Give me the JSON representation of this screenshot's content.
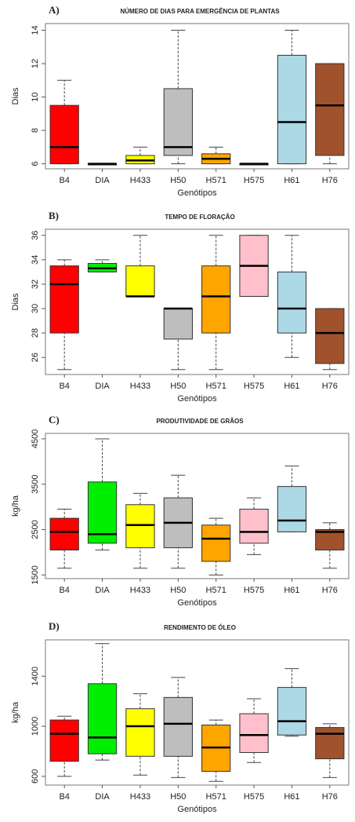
{
  "chart_data": [
    {
      "type": "box",
      "label": "A)",
      "title": "NÚMERO DE DIAS PARA EMERGÊNCIA DE PLANTAS",
      "x_label": "Genótipos",
      "y_label": "Dias",
      "categories": [
        "B4",
        "DIA",
        "H433",
        "H50",
        "H571",
        "H575",
        "H61",
        "H76"
      ],
      "colors": [
        "#ff0000",
        "#00ee00",
        "#ffff00",
        "#bebebe",
        "#ffa500",
        "#ffc0cb",
        "#add8e6",
        "#a0522d"
      ],
      "values": [
        {
          "min": 6,
          "q1": 6,
          "median": 7,
          "q3": 9.5,
          "max": 11
        },
        {
          "min": 6,
          "q1": 6,
          "median": 6,
          "q3": 6,
          "max": 6
        },
        {
          "min": 6,
          "q1": 6,
          "median": 6.2,
          "q3": 6.5,
          "max": 7
        },
        {
          "min": 6,
          "q1": 6.5,
          "median": 7,
          "q3": 10.5,
          "max": 14
        },
        {
          "min": 6,
          "q1": 6,
          "median": 6.3,
          "q3": 6.6,
          "max": 7
        },
        {
          "min": 6,
          "q1": 6,
          "median": 6,
          "q3": 6,
          "max": 6
        },
        {
          "min": 6,
          "q1": 6,
          "median": 8.5,
          "q3": 12.5,
          "max": 14
        },
        {
          "min": 6,
          "q1": 6.5,
          "median": 9.5,
          "q3": 12,
          "max": 12
        }
      ],
      "ylim": [
        5.7,
        14.4
      ],
      "yticks": [
        6,
        8,
        10,
        12,
        14
      ]
    },
    {
      "type": "box",
      "label": "B)",
      "title": "TEMPO DE FLORAÇÃO",
      "x_label": "Genótipos",
      "y_label": "Dias",
      "categories": [
        "B4",
        "DIA",
        "H433",
        "H50",
        "H571",
        "H575",
        "H61",
        "H76"
      ],
      "colors": [
        "#ff0000",
        "#00ee00",
        "#ffff00",
        "#bebebe",
        "#ffa500",
        "#ffc0cb",
        "#add8e6",
        "#a0522d"
      ],
      "values": [
        {
          "min": 25,
          "q1": 28,
          "median": 32,
          "q3": 33.5,
          "max": 34
        },
        {
          "min": 33,
          "q1": 33,
          "median": 33.3,
          "q3": 33.7,
          "max": 34
        },
        {
          "min": 31,
          "q1": 31,
          "median": 31,
          "q3": 33.5,
          "max": 36
        },
        {
          "min": 25,
          "q1": 27.5,
          "median": 30,
          "q3": 30,
          "max": 30
        },
        {
          "min": 25,
          "q1": 28,
          "median": 31,
          "q3": 33.5,
          "max": 36
        },
        {
          "min": 31,
          "q1": 31,
          "median": 33.5,
          "q3": 36,
          "max": 36
        },
        {
          "min": 26,
          "q1": 28,
          "median": 30,
          "q3": 33,
          "max": 36
        },
        {
          "min": 25,
          "q1": 25.5,
          "median": 28,
          "q3": 30,
          "max": 30
        }
      ],
      "ylim": [
        24.6,
        36.5
      ],
      "yticks": [
        26,
        28,
        30,
        32,
        34,
        36
      ]
    },
    {
      "type": "box",
      "label": "C)",
      "title": "PRODUTIVIDADE DE GRÃOS",
      "x_label": "Genótipos",
      "y_label": "kg/ha",
      "categories": [
        "B4",
        "DIA",
        "H433",
        "H50",
        "H571",
        "H575",
        "H61",
        "H76"
      ],
      "colors": [
        "#ff0000",
        "#00ee00",
        "#ffff00",
        "#bebebe",
        "#ffa500",
        "#ffc0cb",
        "#add8e6",
        "#a0522d"
      ],
      "values": [
        {
          "min": 1650,
          "q1": 2050,
          "median": 2450,
          "q3": 2750,
          "max": 2950
        },
        {
          "min": 2050,
          "q1": 2200,
          "median": 2400,
          "q3": 3550,
          "max": 4500
        },
        {
          "min": 1650,
          "q1": 2100,
          "median": 2600,
          "q3": 3050,
          "max": 3300
        },
        {
          "min": 1650,
          "q1": 2100,
          "median": 2650,
          "q3": 3200,
          "max": 3700
        },
        {
          "min": 1500,
          "q1": 1800,
          "median": 2300,
          "q3": 2600,
          "max": 2750
        },
        {
          "min": 1950,
          "q1": 2200,
          "median": 2450,
          "q3": 2950,
          "max": 3200
        },
        {
          "min": 2450,
          "q1": 2450,
          "median": 2700,
          "q3": 3450,
          "max": 3900
        },
        {
          "min": 1650,
          "q1": 2050,
          "median": 2450,
          "q3": 2500,
          "max": 2650
        }
      ],
      "ylim": [
        1420,
        4620
      ],
      "yticks": [
        1500,
        2500,
        3500,
        4500
      ]
    },
    {
      "type": "box",
      "label": "D)",
      "title": "RENDIMENTO DE ÓLEO",
      "x_label": "Genótipos",
      "y_label": "kg/ha",
      "categories": [
        "B4",
        "DIA",
        "H433",
        "H50",
        "H571",
        "H575",
        "H61",
        "H76"
      ],
      "colors": [
        "#ff0000",
        "#00ee00",
        "#ffff00",
        "#bebebe",
        "#ffa500",
        "#ffc0cb",
        "#add8e6",
        "#a0522d"
      ],
      "values": [
        {
          "min": 600,
          "q1": 720,
          "median": 940,
          "q3": 1050,
          "max": 1080
        },
        {
          "min": 730,
          "q1": 780,
          "median": 910,
          "q3": 1340,
          "max": 1660
        },
        {
          "min": 610,
          "q1": 760,
          "median": 1000,
          "q3": 1140,
          "max": 1260
        },
        {
          "min": 590,
          "q1": 760,
          "median": 1020,
          "q3": 1230,
          "max": 1390
        },
        {
          "min": 560,
          "q1": 640,
          "median": 830,
          "q3": 1010,
          "max": 1050
        },
        {
          "min": 710,
          "q1": 790,
          "median": 930,
          "q3": 1100,
          "max": 1220
        },
        {
          "min": 920,
          "q1": 930,
          "median": 1040,
          "q3": 1310,
          "max": 1460
        },
        {
          "min": 590,
          "q1": 740,
          "median": 940,
          "q3": 990,
          "max": 1020
        }
      ],
      "ylim": [
        530,
        1690
      ],
      "yticks": [
        600,
        1000,
        1400
      ]
    }
  ]
}
